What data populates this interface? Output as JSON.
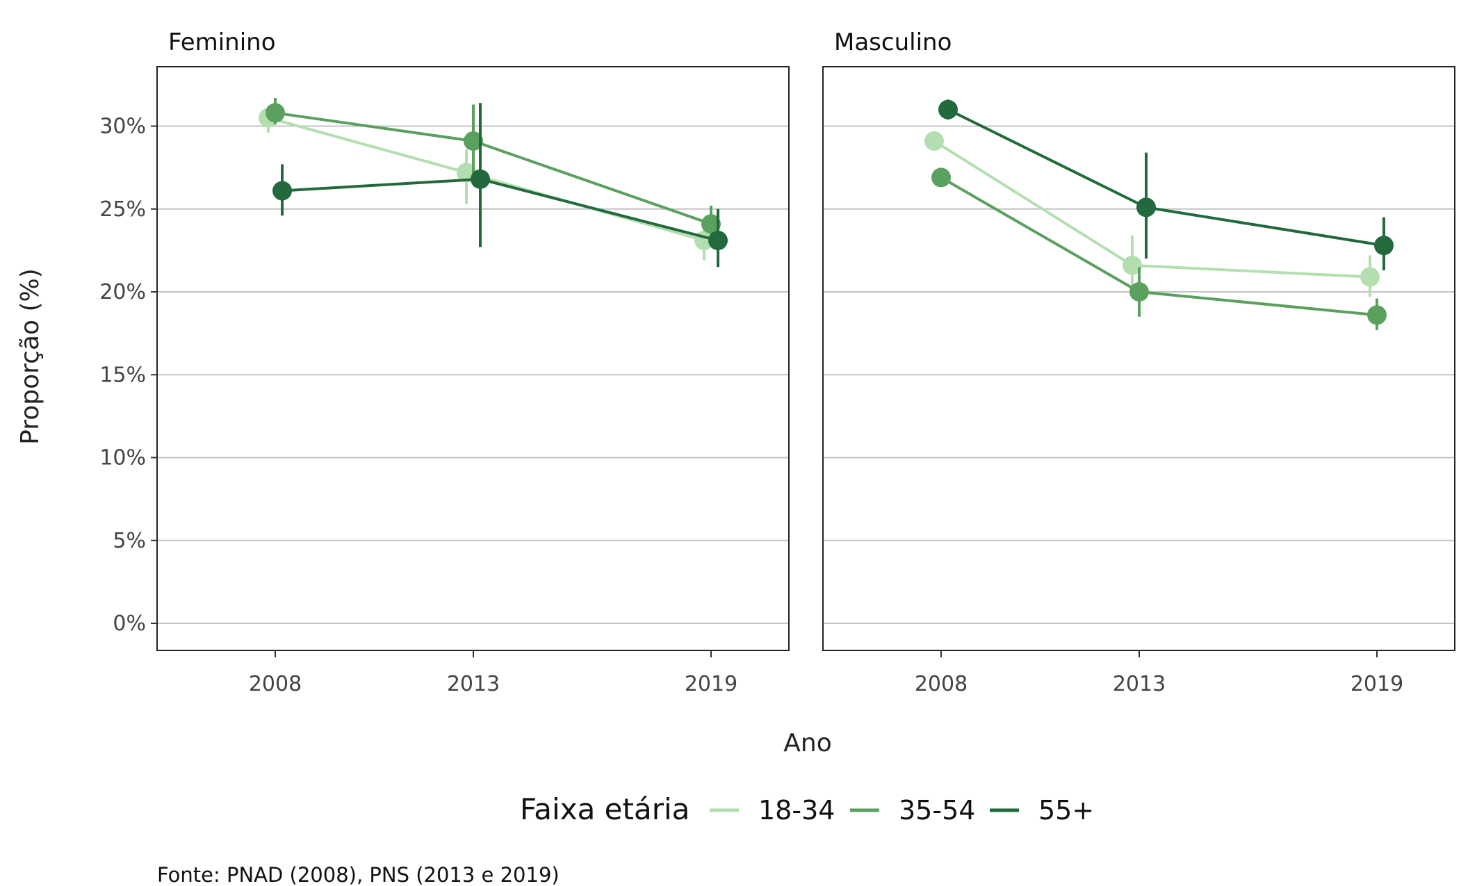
{
  "chart_data": {
    "type": "line",
    "x": [
      2008,
      2013,
      2019
    ],
    "x_tick_labels": [
      "2008",
      "2013",
      "2019"
    ],
    "xlabel": "Ano",
    "ylabel": "Proporção (%)",
    "ylim": [
      0,
      32
    ],
    "y_ticks": [
      0,
      5,
      10,
      15,
      20,
      25,
      30
    ],
    "y_tick_labels": [
      "0%",
      "5%",
      "10%",
      "15%",
      "20%",
      "25%",
      "30%"
    ],
    "grid": "horizontal",
    "legend": {
      "title": "Faixa etária",
      "position": "bottom",
      "entries": [
        "18-34",
        "35-54",
        "55+"
      ]
    },
    "caption": "Fonte: PNAD (2008), PNS (2013 e 2019)",
    "colors": {
      "18-34": "#b3dfb0",
      "35-54": "#5aa05e",
      "55+": "#226a3e"
    },
    "panels": [
      {
        "title": "Feminino",
        "series": [
          {
            "name": "18-34",
            "values": [
              30.5,
              27.2,
              23.1
            ],
            "lower": [
              29.6,
              25.3,
              21.9
            ],
            "upper": [
              31.2,
              28.6,
              24.0
            ]
          },
          {
            "name": "35-54",
            "values": [
              30.8,
              29.1,
              24.1
            ],
            "lower": [
              30.1,
              27.0,
              23.1
            ],
            "upper": [
              31.7,
              31.3,
              25.2
            ]
          },
          {
            "name": "55+",
            "values": [
              26.1,
              26.8,
              23.1
            ],
            "lower": [
              24.6,
              22.7,
              21.5
            ],
            "upper": [
              27.7,
              31.4,
              25.0
            ]
          }
        ]
      },
      {
        "title": "Masculino",
        "series": [
          {
            "name": "18-34",
            "values": [
              29.1,
              21.6,
              20.9
            ],
            "lower": [
              28.6,
              20.0,
              19.7
            ],
            "upper": [
              29.7,
              23.4,
              22.2
            ]
          },
          {
            "name": "35-54",
            "values": [
              26.9,
              20.0,
              18.6
            ],
            "lower": [
              26.4,
              18.5,
              17.7
            ],
            "upper": [
              27.3,
              21.5,
              19.6
            ]
          },
          {
            "name": "55+",
            "values": [
              31.0,
              25.1,
              22.8
            ],
            "lower": [
              30.4,
              22.0,
              21.3
            ],
            "upper": [
              31.6,
              28.4,
              24.5
            ]
          }
        ]
      }
    ]
  }
}
